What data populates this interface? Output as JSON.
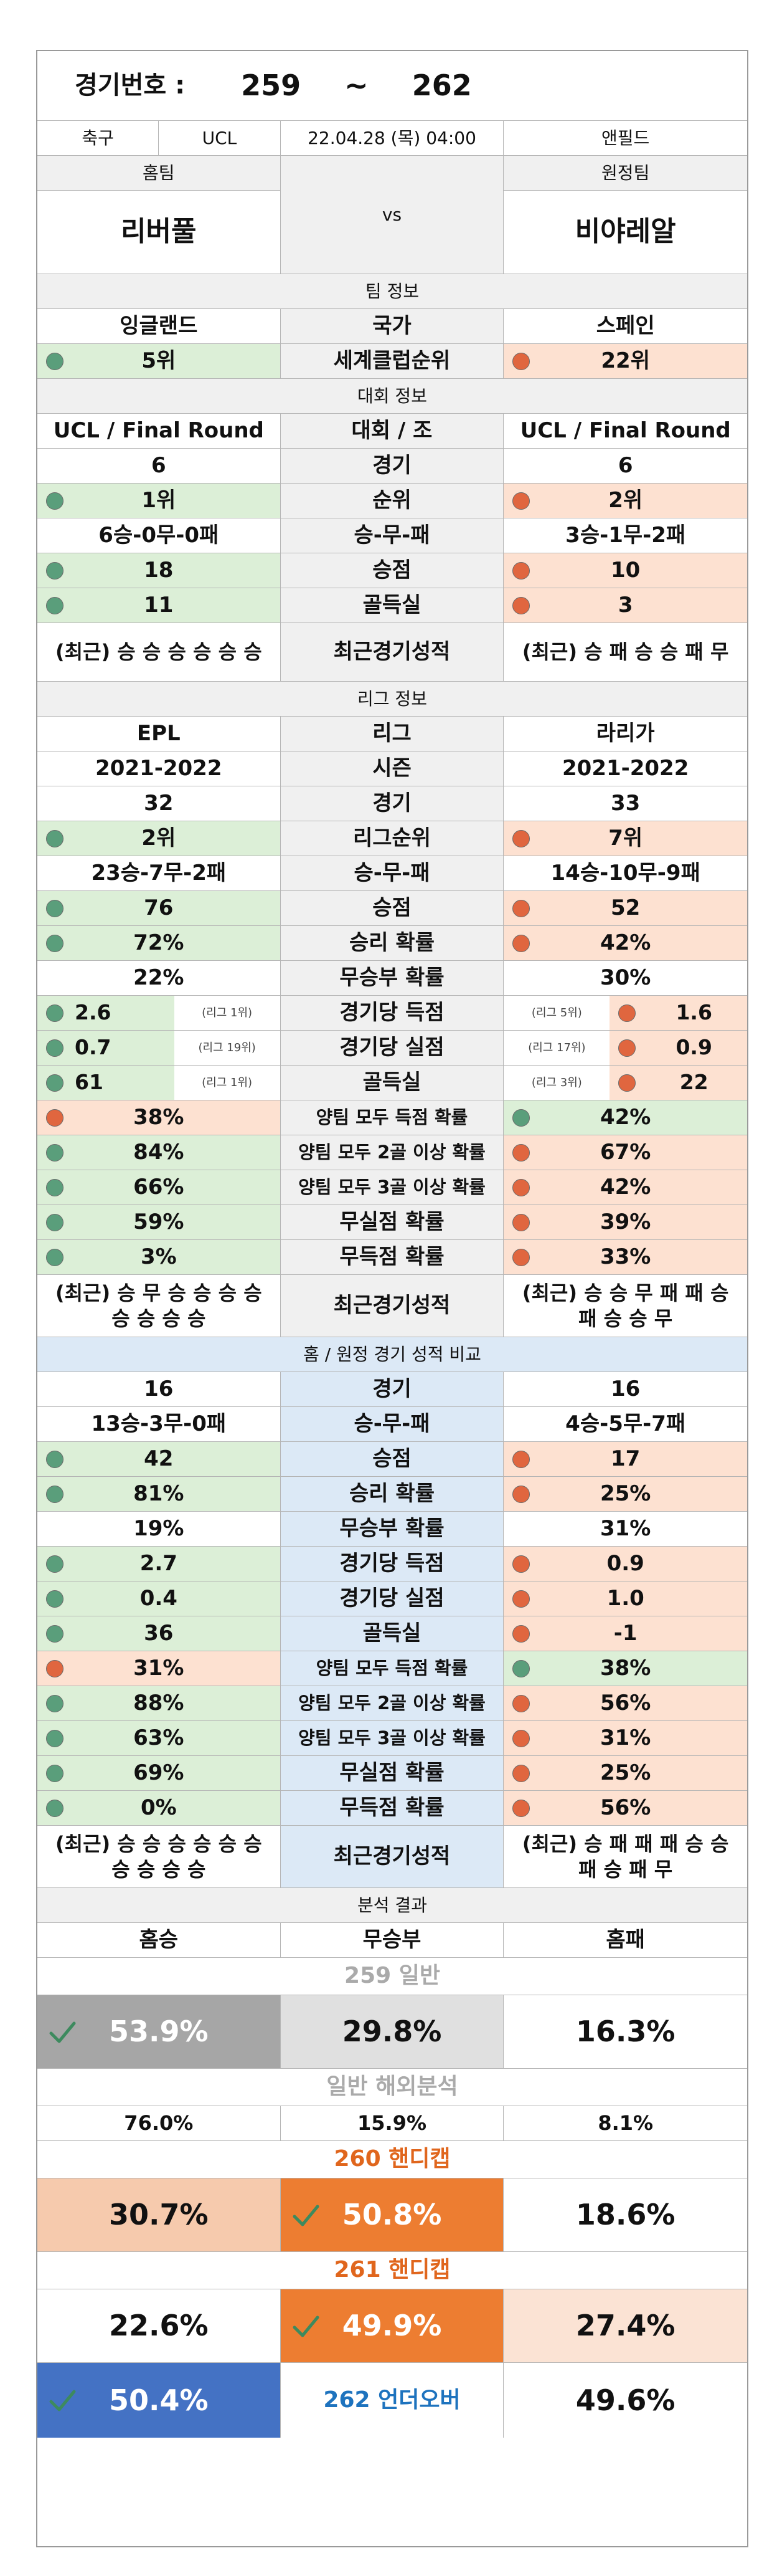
{
  "header": {
    "label": "경기번호 :",
    "from": "259",
    "tilde": "~",
    "to": "262"
  },
  "match": {
    "sport": "축구",
    "league": "UCL",
    "datetime": "22.04.28 (목) 04:00",
    "venue": "앤필드"
  },
  "teams": {
    "home_label": "홈팀",
    "away_label": "원정팀",
    "home": "리버풀",
    "vs": "vs",
    "away": "비야레알"
  },
  "team_info": {
    "title": "팀 정보",
    "rows": [
      {
        "label": "국가",
        "home": "잉글랜드",
        "away": "스페인"
      },
      {
        "label": "세계클럽순위",
        "home": "5위",
        "away": "22위"
      }
    ]
  },
  "comp_info": {
    "title": "대회 정보",
    "rows": [
      {
        "label": "대회 / 조",
        "home": "UCL / Final Round",
        "away": "UCL / Final Round"
      },
      {
        "label": "경기",
        "home": "6",
        "away": "6"
      },
      {
        "label": "순위",
        "home": "1위",
        "away": "2위"
      },
      {
        "label": "승-무-패",
        "home": "6승-0무-0패",
        "away": "3승-1무-2패"
      },
      {
        "label": "승점",
        "home": "18",
        "away": "10"
      },
      {
        "label": "골득실",
        "home": "11",
        "away": "3"
      },
      {
        "label": "최근경기성적",
        "home": "(최근) 승 승 승 승 승 승",
        "away": "(최근) 승 패 승 승 패 무"
      }
    ]
  },
  "league_info": {
    "title": "리그 정보",
    "rows": [
      {
        "label": "리그",
        "home": "EPL",
        "away": "라리가"
      },
      {
        "label": "시즌",
        "home": "2021-2022",
        "away": "2021-2022"
      },
      {
        "label": "경기",
        "home": "32",
        "away": "33"
      },
      {
        "label": "리그순위",
        "home": "2위",
        "away": "7위"
      },
      {
        "label": "승-무-패",
        "home": "23승-7무-2패",
        "away": "14승-10무-9패"
      },
      {
        "label": "승점",
        "home": "76",
        "away": "52"
      },
      {
        "label": "승리 확률",
        "home": "72%",
        "away": "42%"
      },
      {
        "label": "무승부 확률",
        "home": "22%",
        "away": "30%"
      },
      {
        "label": "경기당 득점",
        "home": "2.6",
        "home_rank": "(리그 1위)",
        "away": "1.6",
        "away_rank": "(리그 5위)"
      },
      {
        "label": "경기당 실점",
        "home": "0.7",
        "home_rank": "(리그 19위)",
        "away": "0.9",
        "away_rank": "(리그 17위)"
      },
      {
        "label": "골득실",
        "home": "61",
        "home_rank": "(리그 1위)",
        "away": "22",
        "away_rank": "(리그 3위)"
      },
      {
        "label": "양팀 모두 득점 확률",
        "home": "38%",
        "away": "42%"
      },
      {
        "label": "양팀 모두 2골 이상 확률",
        "home": "84%",
        "away": "67%"
      },
      {
        "label": "양팀 모두 3골 이상 확률",
        "home": "66%",
        "away": "42%"
      },
      {
        "label": "무실점 확률",
        "home": "59%",
        "away": "39%"
      },
      {
        "label": "무득점 확률",
        "home": "3%",
        "away": "33%"
      },
      {
        "label": "최근경기성적",
        "home": "(최근) 승 무 승 승 승 승 승 승 승 승",
        "away": "(최근) 승 승 무 패 패 승 패 승 승 무"
      }
    ]
  },
  "homeaway": {
    "title": "홈 / 원정 경기 성적 비교",
    "rows": [
      {
        "label": "경기",
        "home": "16",
        "away": "16"
      },
      {
        "label": "승-무-패",
        "home": "13승-3무-0패",
        "away": "4승-5무-7패"
      },
      {
        "label": "승점",
        "home": "42",
        "away": "17"
      },
      {
        "label": "승리 확률",
        "home": "81%",
        "away": "25%"
      },
      {
        "label": "무승부 확률",
        "home": "19%",
        "away": "31%"
      },
      {
        "label": "경기당 득점",
        "home": "2.7",
        "away": "0.9"
      },
      {
        "label": "경기당 실점",
        "home": "0.4",
        "away": "1.0"
      },
      {
        "label": "골득실",
        "home": "36",
        "away": "-1"
      },
      {
        "label": "양팀 모두 득점 확률",
        "home": "31%",
        "away": "38%"
      },
      {
        "label": "양팀 모두 2골 이상 확률",
        "home": "88%",
        "away": "56%"
      },
      {
        "label": "양팀 모두 3골 이상 확률",
        "home": "63%",
        "away": "31%"
      },
      {
        "label": "무실점 확률",
        "home": "69%",
        "away": "25%"
      },
      {
        "label": "무득점 확률",
        "home": "0%",
        "away": "56%"
      },
      {
        "label": "최근경기성적",
        "home": "(최근) 승 승 승 승 승 승 승 승 승 승",
        "away": "(최근) 승 패 패 패 승 승 패 승 패 무"
      }
    ]
  },
  "analysis": {
    "title": "분석 결과",
    "cols": [
      "홈승",
      "무승부",
      "홈패"
    ],
    "g259": {
      "label": "259 일반",
      "win": "53.9%",
      "draw": "29.8%",
      "loss": "16.3%"
    },
    "overseas": {
      "label": "일반 해외분석",
      "win": "76.0%",
      "draw": "15.9%",
      "loss": "8.1%"
    },
    "g260": {
      "label": "260 핸디캡",
      "win": "30.7%",
      "draw": "50.8%",
      "loss": "18.6%"
    },
    "g261": {
      "label": "261 핸디캡",
      "win": "22.6%",
      "draw": "49.9%",
      "loss": "27.4%"
    },
    "g262": {
      "label": "262 언더오버",
      "under": "50.4%",
      "over": "49.6%"
    }
  },
  "colors": {
    "green": "#dcefd7",
    "orange": "#fde1d1",
    "blue": "#dce9f6",
    "gray": "#f0f0f0",
    "dot_green": "#5a9e7b",
    "dot_orange": "#e0663f",
    "pick_gray": "#a6a6a6",
    "pick_orange": "#ed7d31",
    "pick_blue": "#4472c4"
  }
}
